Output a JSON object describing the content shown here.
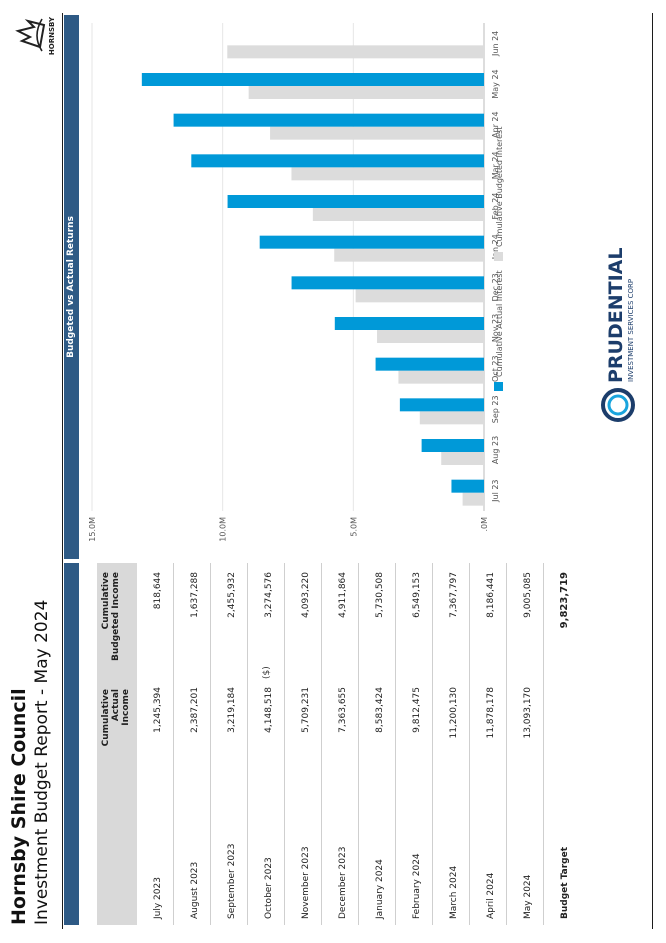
{
  "header": {
    "title": "Hornsby Shire Council",
    "subtitle": "Investment Budget Report - May 2024",
    "logo_text": "HORNSBY"
  },
  "table": {
    "col_actual": "Cumulative Actual Income",
    "col_budgeted": "Cumulative Budgeted Income",
    "rows": [
      {
        "month": "July 2023",
        "actual": "1,245,394",
        "budgeted": "818,644"
      },
      {
        "month": "August 2023",
        "actual": "2,387,201",
        "budgeted": "1,637,288"
      },
      {
        "month": "September 2023",
        "actual": "3,219,184",
        "budgeted": "2,455,932"
      },
      {
        "month": "October 2023",
        "actual": "4,148,518",
        "budgeted": "3,274,576"
      },
      {
        "month": "November 2023",
        "actual": "5,709,231",
        "budgeted": "4,093,220"
      },
      {
        "month": "December 2023",
        "actual": "7,363,655",
        "budgeted": "4,911,864"
      },
      {
        "month": "January 2024",
        "actual": "8,583,424",
        "budgeted": "5,730,508"
      },
      {
        "month": "February 2024",
        "actual": "9,812,475",
        "budgeted": "6,549,153"
      },
      {
        "month": "March 2024",
        "actual": "11,200,130",
        "budgeted": "7,367,797"
      },
      {
        "month": "April 2024",
        "actual": "11,878,178",
        "budgeted": "8,186,441"
      },
      {
        "month": "May 2024",
        "actual": "13,093,170",
        "budgeted": "9,005,085"
      }
    ],
    "target_label": "Budget Target",
    "target_value": "9,823,719"
  },
  "chart_data": {
    "type": "bar",
    "title": "Budgeted vs Actual Returns",
    "ylabel": "($)",
    "ylim": [
      0,
      15000000
    ],
    "yticks": [
      ".0M",
      "5.0M",
      "10.0M",
      "15.0M"
    ],
    "ytick_values": [
      0,
      5000000,
      10000000,
      15000000
    ],
    "categories": [
      "Jul 23",
      "Aug 23",
      "Sep 23",
      "Oct 23",
      "Nov 23",
      "Dec 23",
      "Jan 24",
      "Feb 24",
      "Mar 24",
      "Apr 24",
      "May 24",
      "Jun 24"
    ],
    "series": [
      {
        "name": "Cumulative Actual Interest",
        "color": "#0099d8",
        "values": [
          1245394,
          2387201,
          3219184,
          4148518,
          5709231,
          7363655,
          8583424,
          9812475,
          11200130,
          11878178,
          13093170,
          null
        ]
      },
      {
        "name": "Cumulative Budgeted Interest",
        "color": "#dcdcdc",
        "values": [
          818644,
          1637288,
          2455932,
          3274576,
          4093220,
          4911864,
          5730508,
          6549153,
          7367797,
          8186441,
          9005085,
          9823719
        ]
      }
    ],
    "grid": true,
    "legend": "bottom"
  },
  "footer": {
    "brand": "PRUDENTIAL",
    "brand_sub": "INVESTMENT SERVICES CORP"
  }
}
